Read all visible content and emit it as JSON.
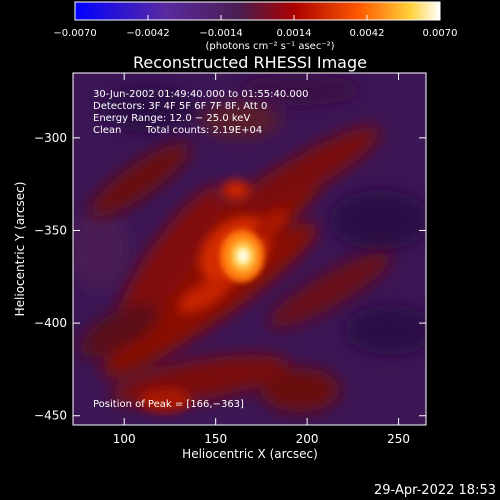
{
  "colorbar": {
    "tick_labels": [
      "−0.0070",
      "−0.0042",
      "−0.0014",
      "0.0014",
      "0.0042",
      "0.0070"
    ],
    "units": "(photons cm⁻² s⁻¹ asec⁻²)",
    "range": [
      -0.007,
      0.007
    ],
    "colors": [
      "#0000ff",
      "#5a2aa0",
      "#55225a",
      "#aa0000",
      "#ff5a00",
      "#ffd23c",
      "#ffffff"
    ]
  },
  "chart_data": {
    "type": "heatmap",
    "title": "Reconstructed RHESSI Image",
    "xlabel": "Heliocentric X (arcsec)",
    "ylabel": "Heliocentric Y (arcsec)",
    "xlim": [
      72,
      265
    ],
    "ylim": [
      -455,
      -265
    ],
    "x_ticks": [
      100,
      150,
      200,
      250
    ],
    "y_ticks": [
      -300,
      -350,
      -400,
      -450
    ],
    "x_tick_labels": [
      "100",
      "150",
      "200",
      "250"
    ],
    "y_tick_labels": [
      "−300",
      "−350",
      "−400",
      "−450"
    ],
    "peak": [
      166,
      -363
    ],
    "annotations": {
      "time": "30-Jun-2002 01:49:40.000 to 01:55:40.000",
      "detectors": "Detectors: 3F 4F 5F 6F 7F 8F, Att 0",
      "energy": "Energy Range: 12.0 − 25.0 keV",
      "method": "Clean",
      "counts": "Total counts: 2.19E+04",
      "peak_label": "Position of Peak = [166,−363]"
    }
  },
  "timestamp": "29-Apr-2022 18:53"
}
